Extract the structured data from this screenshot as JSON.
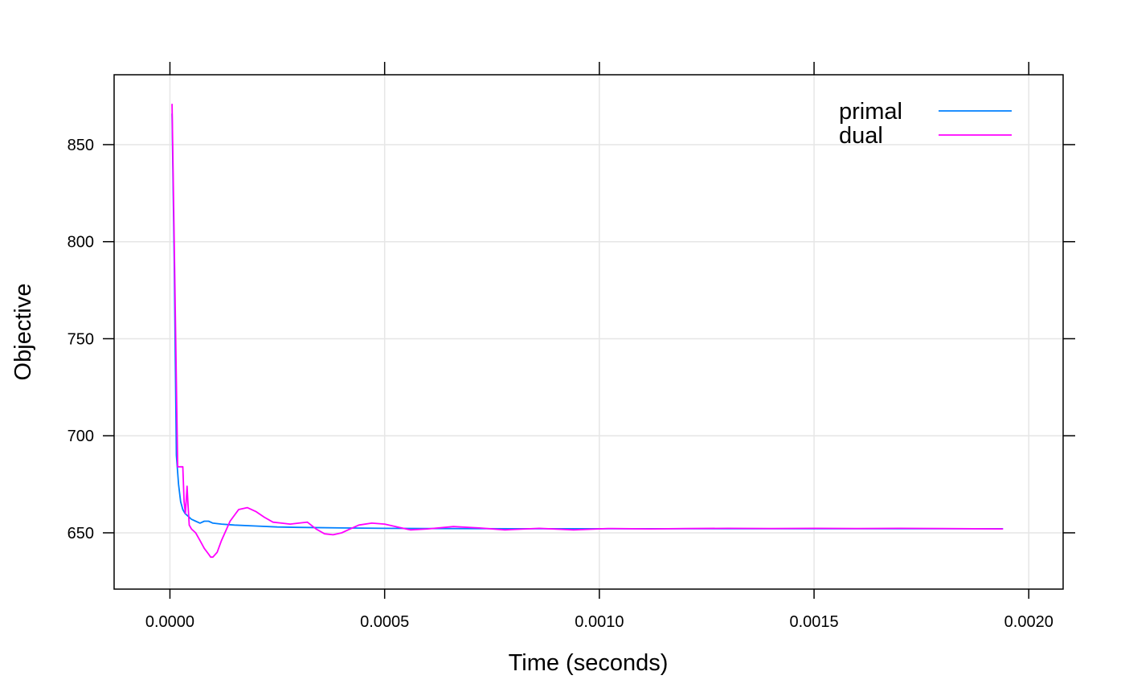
{
  "chart_data": {
    "type": "line",
    "title": "",
    "xlabel": "Time (seconds)",
    "ylabel": "Objective",
    "xlim": [
      -0.00013,
      0.00208
    ],
    "ylim": [
      621,
      886
    ],
    "x_ticks": [
      0,
      0.0005,
      0.001,
      0.0015,
      0.002
    ],
    "x_tick_labels": [
      "0.0000",
      "0.0005",
      "0.0010",
      "0.0015",
      "0.0020"
    ],
    "y_ticks": [
      650,
      700,
      750,
      800,
      850
    ],
    "y_tick_labels": [
      "650",
      "700",
      "750",
      "800",
      "850"
    ],
    "grid": true,
    "legend_position": "top-right",
    "series": [
      {
        "name": "primal",
        "color": "#0080ff",
        "x": [
          5e-06,
          1e-05,
          1.5e-05,
          2e-05,
          2.5e-05,
          3e-05,
          3.5e-05,
          4e-05,
          4.5e-05,
          5e-05,
          6e-05,
          7e-05,
          8e-05,
          9e-05,
          0.0001,
          0.00012,
          0.00015,
          0.0002,
          0.00025,
          0.0003,
          0.0004,
          0.0005,
          0.0006,
          0.0008,
          0.001,
          0.0012,
          0.0014,
          0.0016,
          0.0018,
          0.00194
        ],
        "y": [
          866,
          790,
          690,
          675,
          666,
          662,
          660,
          659,
          658,
          657,
          656,
          655,
          656,
          656,
          655,
          654.5,
          654,
          653.5,
          653,
          652.8,
          652.5,
          652.3,
          652.2,
          652.1,
          652.1,
          652.1,
          652.1,
          652.1,
          652.1,
          652.1
        ]
      },
      {
        "name": "dual",
        "color": "#ff00ff",
        "x": [
          5e-06,
          1e-05,
          1.8e-05,
          2.2e-05,
          3e-05,
          3.3e-05,
          3.6e-05,
          4e-05,
          4.2e-05,
          4.5e-05,
          5e-05,
          6e-05,
          7e-05,
          8e-05,
          9e-05,
          9.5e-05,
          0.0001,
          0.00011,
          0.00012,
          0.00014,
          0.00016,
          0.00018,
          0.0002,
          0.00022,
          0.00024,
          0.00026,
          0.00028,
          0.0003,
          0.00032,
          0.00034,
          0.00036,
          0.00038,
          0.0004,
          0.00042,
          0.00044,
          0.00047,
          0.0005,
          0.00053,
          0.00056,
          0.0006,
          0.00066,
          0.00072,
          0.00078,
          0.00086,
          0.00094,
          0.00102,
          0.00112,
          0.0012,
          0.0013,
          0.0014,
          0.0015,
          0.0016,
          0.0017,
          0.0018,
          0.00194
        ],
        "y": [
          871,
          800,
          684,
          684,
          684,
          666,
          660,
          674,
          665,
          654,
          652,
          650,
          646,
          642,
          639,
          637.5,
          637.5,
          640,
          646,
          656,
          662,
          663,
          661,
          658,
          655.5,
          655,
          654.5,
          655,
          655.5,
          652,
          649.5,
          649,
          650,
          652,
          654,
          655,
          654.5,
          653,
          651.5,
          652,
          653.2,
          652.5,
          651.5,
          652.3,
          651.5,
          652.2,
          652.0,
          652.2,
          652.3,
          652.2,
          652.3,
          652.2,
          652.3,
          652.2,
          652.0
        ]
      }
    ]
  }
}
